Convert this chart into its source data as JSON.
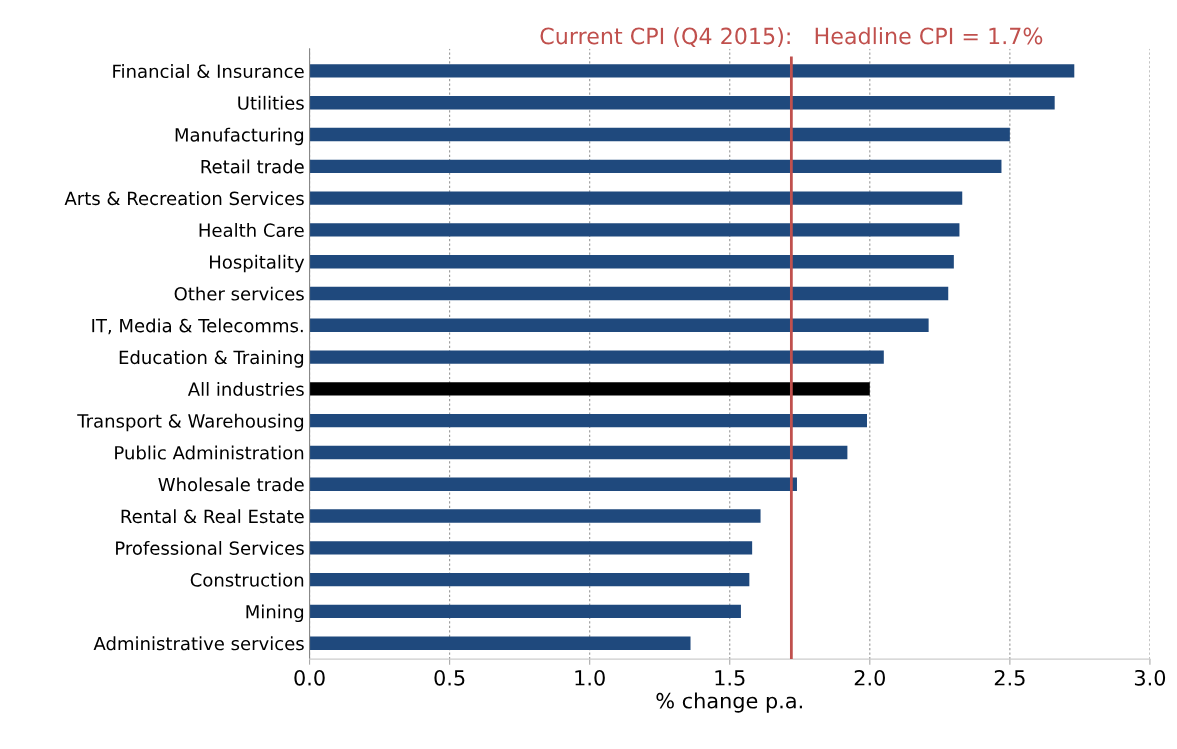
{
  "chart_data": {
    "type": "bar",
    "orientation": "horizontal",
    "xlabel": "% change p.a.",
    "categories": [
      "Financial & Insurance",
      "Utilities",
      "Manufacturing",
      "Retail trade",
      "Arts & Recreation Services",
      "Health Care",
      "Hospitality",
      "Other services",
      "IT, Media & Telecomms.",
      "Education & Training",
      "All industries",
      "Transport & Warehousing",
      "Public Administration",
      "Wholesale trade",
      "Rental & Real Estate",
      "Professional Services",
      "Construction",
      "Mining",
      "Administrative services"
    ],
    "values": [
      2.73,
      2.66,
      2.5,
      2.47,
      2.33,
      2.32,
      2.3,
      2.28,
      2.21,
      2.05,
      2.0,
      1.99,
      1.92,
      1.74,
      1.61,
      1.58,
      1.57,
      1.54,
      1.36
    ],
    "colors": [
      "#1f497d",
      "#1f497d",
      "#1f497d",
      "#1f497d",
      "#1f497d",
      "#1f497d",
      "#1f497d",
      "#1f497d",
      "#1f497d",
      "#1f497d",
      "#000000",
      "#1f497d",
      "#1f497d",
      "#1f497d",
      "#1f497d",
      "#1f497d",
      "#1f497d",
      "#1f497d",
      "#1f497d"
    ],
    "xlim": [
      0,
      3
    ],
    "xticks": [
      {
        "value": 0,
        "label": "0.0"
      },
      {
        "value": 0.5,
        "label": "0.5"
      },
      {
        "value": 1,
        "label": "1.0"
      },
      {
        "value": 1.5,
        "label": "1.5"
      },
      {
        "value": 2,
        "label": "2.0"
      },
      {
        "value": 2.5,
        "label": "2.5"
      },
      {
        "value": 3,
        "label": "3.0"
      }
    ],
    "grid": "x",
    "ref_lines": [
      {
        "axis": "x",
        "value": 1.72,
        "label": "Current CPI (Q4 2015):   Headline CPI = 1.7%",
        "color": "#c0504d"
      }
    ]
  }
}
